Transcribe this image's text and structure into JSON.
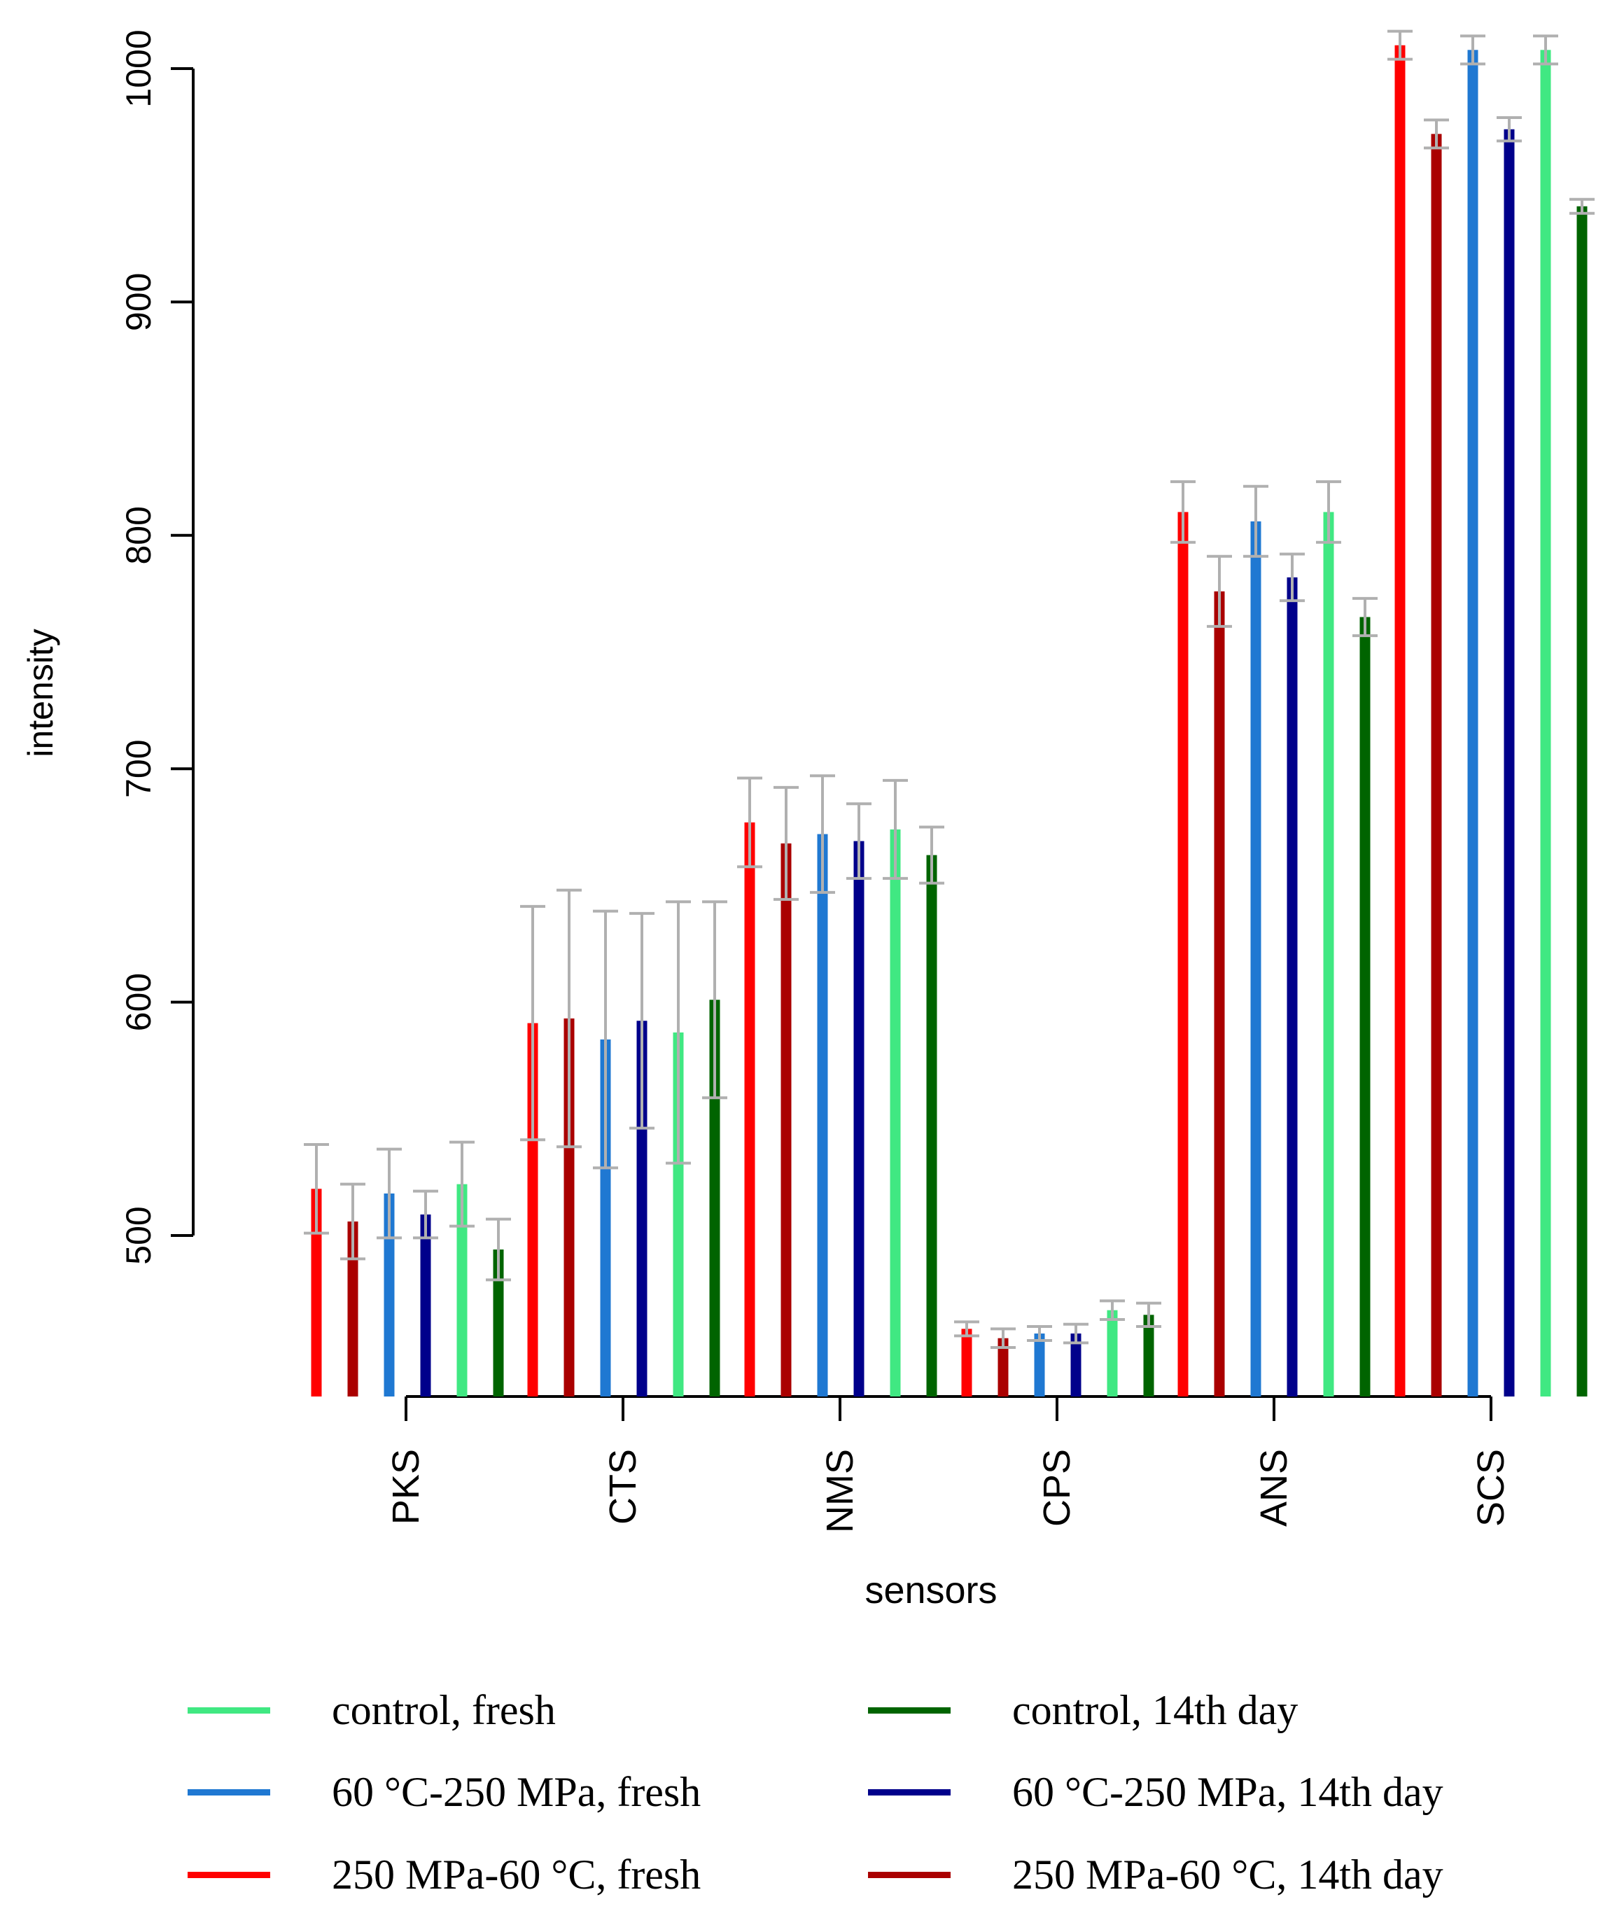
{
  "chart_data": {
    "type": "bar",
    "title": "",
    "xlabel": "sensors",
    "ylabel": "intensity",
    "ylim": [
      430,
      1010
    ],
    "yticks": [
      500,
      600,
      700,
      800,
      900,
      1000
    ],
    "categories": [
      "PKS",
      "CTS",
      "NMS",
      "CPS",
      "ANS",
      "SCS"
    ],
    "series": [
      {
        "name": "250 MPa-60 °C, fresh",
        "color": "#ff0000",
        "values": [
          520,
          591,
          677,
          460,
          810,
          1010
        ],
        "errors": [
          19,
          50,
          19,
          3,
          13,
          6
        ]
      },
      {
        "name": "250 MPa-60 °C, 14th day",
        "color": "#aa0000",
        "values": [
          506,
          593,
          668,
          456,
          776,
          972
        ],
        "errors": [
          16,
          55,
          24,
          4,
          15,
          6
        ]
      },
      {
        "name": "60 °C-250 MPa, fresh",
        "color": "#1f78d2",
        "values": [
          518,
          584,
          672,
          458,
          806,
          1008
        ],
        "errors": [
          19,
          55,
          25,
          3,
          15,
          6
        ]
      },
      {
        "name": "60 °C-250 MPa, 14th day",
        "color": "#00008b",
        "values": [
          509,
          592,
          669,
          458,
          782,
          974
        ],
        "errors": [
          10,
          46,
          16,
          4,
          10,
          5
        ]
      },
      {
        "name": "control, fresh",
        "color": "#40e882",
        "values": [
          522,
          587,
          674,
          468,
          810,
          1008
        ],
        "errors": [
          18,
          56,
          21,
          4,
          13,
          6
        ]
      },
      {
        "name": "control, 14th day",
        "color": "#006400",
        "values": [
          494,
          601,
          663,
          466,
          765,
          941
        ],
        "errors": [
          13,
          42,
          12,
          5,
          8,
          3
        ]
      }
    ],
    "legend_position": "bottom"
  },
  "legend": {
    "items": [
      {
        "label": "control, fresh",
        "color": "#40e882"
      },
      {
        "label": "control, 14th day",
        "color": "#006400"
      },
      {
        "label": "60 °C-250 MPa, fresh",
        "color": "#1f78d2"
      },
      {
        "label": "60 °C-250 MPa, 14th day",
        "color": "#00008b"
      },
      {
        "label": "250 MPa-60 °C, fresh",
        "color": "#ff0000"
      },
      {
        "label": "250 MPa-60 °C, 14th day",
        "color": "#aa0000"
      }
    ]
  }
}
